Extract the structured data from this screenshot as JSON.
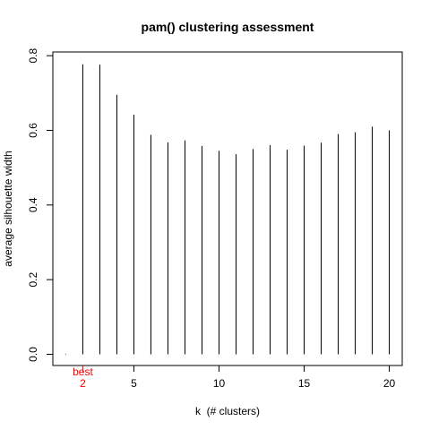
{
  "chart_data": {
    "type": "bar",
    "style": "vertical lines (type='h')",
    "title": "pam() clustering assessment",
    "xlabel": "k  (# clusters)",
    "ylabel": "average silhouette width",
    "x": [
      1,
      2,
      3,
      4,
      5,
      6,
      7,
      8,
      9,
      10,
      11,
      12,
      13,
      14,
      15,
      16,
      17,
      18,
      19,
      20
    ],
    "values": [
      0,
      0.777,
      0.776,
      0.695,
      0.642,
      0.588,
      0.568,
      0.573,
      0.558,
      0.545,
      0.536,
      0.55,
      0.56,
      0.548,
      0.559,
      0.567,
      0.59,
      0.595,
      0.61,
      0.6
    ],
    "xlim": [
      0.24,
      20.76
    ],
    "ylim": [
      -0.03,
      0.81
    ],
    "x_ticks": [
      5,
      10,
      15,
      20
    ],
    "x_tick_labels": [
      "5",
      "10",
      "15",
      "20"
    ],
    "y_ticks": [
      0.0,
      0.2,
      0.4,
      0.6,
      0.8
    ],
    "y_tick_labels": [
      "0.0",
      "0.2",
      "0.4",
      "0.6",
      "0.8"
    ],
    "best_k": 2,
    "best_marker": {
      "word": "best",
      "value": "2",
      "color": "#ff0000"
    },
    "bar_color": "#000000",
    "grid": false,
    "legend": "none"
  }
}
